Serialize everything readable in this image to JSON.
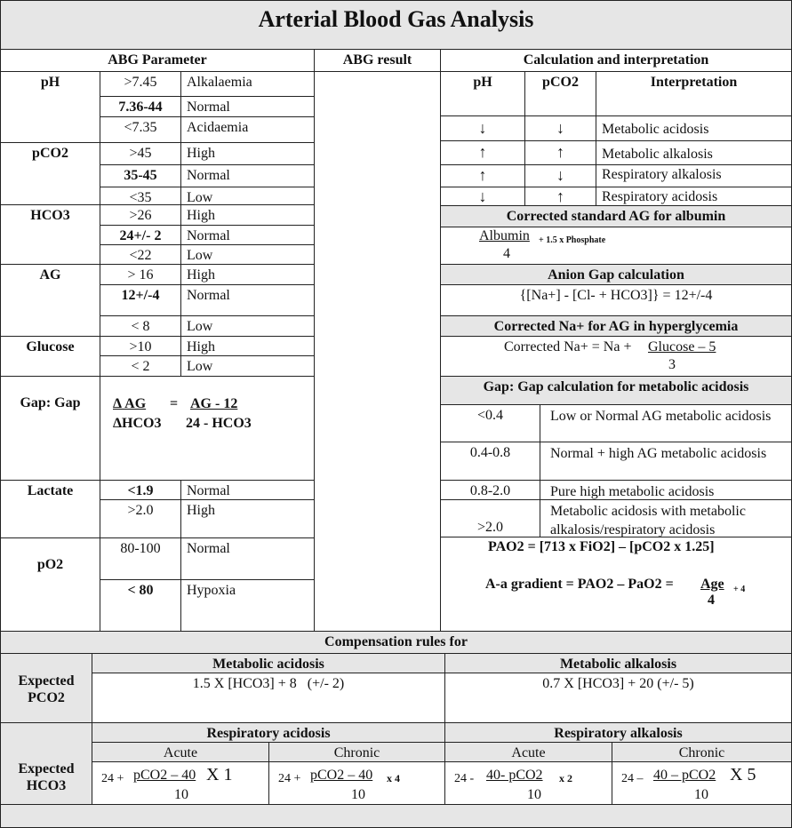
{
  "title": "Arterial Blood Gas Analysis",
  "headers": {
    "param": "ABG Parameter",
    "result": "ABG result",
    "calc": "Calculation and interpretation"
  },
  "params": {
    "ph": {
      "name": "pH",
      "rows": [
        [
          ">7.45",
          "Alkalaemia"
        ],
        [
          "7.36-44",
          "Normal"
        ],
        [
          "<7.35",
          "Acidaemia"
        ]
      ]
    },
    "pco2": {
      "name": "pCO2",
      "rows": [
        [
          ">45",
          "High"
        ],
        [
          "35-45",
          "Normal"
        ],
        [
          "<35",
          "Low"
        ]
      ]
    },
    "hco3": {
      "name": "HCO3",
      "rows": [
        [
          ">26",
          "High"
        ],
        [
          "24+/- 2",
          "Normal"
        ],
        [
          "<22",
          "Low"
        ]
      ]
    },
    "ag": {
      "name": "AG",
      "rows": [
        [
          "> 16",
          "High"
        ],
        [
          "12+/-4",
          "Normal"
        ],
        [
          "< 8",
          "Low"
        ]
      ]
    },
    "glucose": {
      "name": "Glucose",
      "rows": [
        [
          ">10",
          "High"
        ],
        [
          "< 2",
          "Low"
        ]
      ]
    },
    "gap": {
      "name": "Gap: Gap",
      "num1": "Δ AG",
      "den1": "ΔHCO3",
      "eq": "=",
      "num2": "AG - 12",
      "den2": "24 - HCO3"
    },
    "lactate": {
      "name": "Lactate",
      "rows": [
        [
          "<1.9",
          "Normal"
        ],
        [
          ">2.0",
          "High"
        ]
      ]
    },
    "po2": {
      "name": "pO2",
      "rows": [
        [
          "80-100",
          "Normal"
        ],
        [
          "< 80",
          "Hypoxia"
        ]
      ]
    }
  },
  "interp": {
    "cols": [
      "pH",
      "pCO2",
      "Interpretation"
    ],
    "rows": [
      {
        "ph": "↓",
        "pco2": "↓",
        "text": "Metabolic acidosis"
      },
      {
        "ph": "↑",
        "pco2": "↑",
        "text": "Metabolic alkalosis"
      },
      {
        "ph": "↑",
        "pco2": "↓",
        "text": "Respiratory alkalosis"
      },
      {
        "ph": "↓",
        "pco2": "↑",
        "text": "Respiratory acidosis"
      }
    ]
  },
  "albumin": {
    "title": "Corrected standard AG for albumin",
    "num": "Albumin",
    "rest": "+ 1.5 x Phosphate",
    "den": "4"
  },
  "anion_gap": {
    "title": "Anion Gap calculation",
    "formula": "{[Na+] - [Cl- + HCO3]} = 12+/-4"
  },
  "corrected_na": {
    "title": "Corrected Na+ for AG in hyperglycemia",
    "lhs": "Corrected Na+ = Na + ",
    "num": "Glucose – 5",
    "den": "3"
  },
  "gapgap": {
    "title": "Gap: Gap calculation for metabolic acidosis",
    "rows": [
      {
        "range": "<0.4",
        "text": "Low or Normal AG metabolic acidosis"
      },
      {
        "range": "0.4-0.8",
        "text": "Normal + high AG metabolic acidosis"
      },
      {
        "range": "0.8-2.0",
        "text": "Pure high metabolic acidosis"
      },
      {
        "range": ">2.0",
        "text": "Metabolic acidosis with metabolic alkalosis/respiratory acidosis"
      }
    ]
  },
  "pao2": {
    "formula": "PAO2 = [713 x FiO2] – [pCO2 x 1.25]",
    "aa_lhs": "A-a gradient = PAO2 – PaO2 = ",
    "aa_num": "Age",
    "aa_rest": "+ 4",
    "aa_den": "4"
  },
  "compensation": {
    "title": "Compensation rules for",
    "pco2": {
      "label": "Expected PCO2",
      "met_acid": "Metabolic acidosis",
      "met_acid_f": "1.5 X [HCO3] + 8   (+/- 2)",
      "met_alk": "Metabolic alkalosis",
      "met_alk_f": "0.7 X [HCO3] + 20 (+/- 5)"
    },
    "hco3": {
      "label": "Expected HCO3",
      "resp_acid": "Respiratory acidosis",
      "resp_alk": "Respiratory alkalosis",
      "acute": "Acute",
      "chronic": "Chronic",
      "f": [
        {
          "pre": "24 + ",
          "num": "pCO2 – 40",
          "mul": "X 1",
          "den": "10"
        },
        {
          "pre": "24 + ",
          "num": "pCO2 – 40",
          "mul": "x 4",
          "den": "10"
        },
        {
          "pre": "24 - ",
          "num": "40- pCO2",
          "mul": "x 2",
          "den": "10"
        },
        {
          "pre": "24 – ",
          "num": "40 – pCO2",
          "mul": "X 5",
          "den": "10"
        }
      ]
    }
  }
}
